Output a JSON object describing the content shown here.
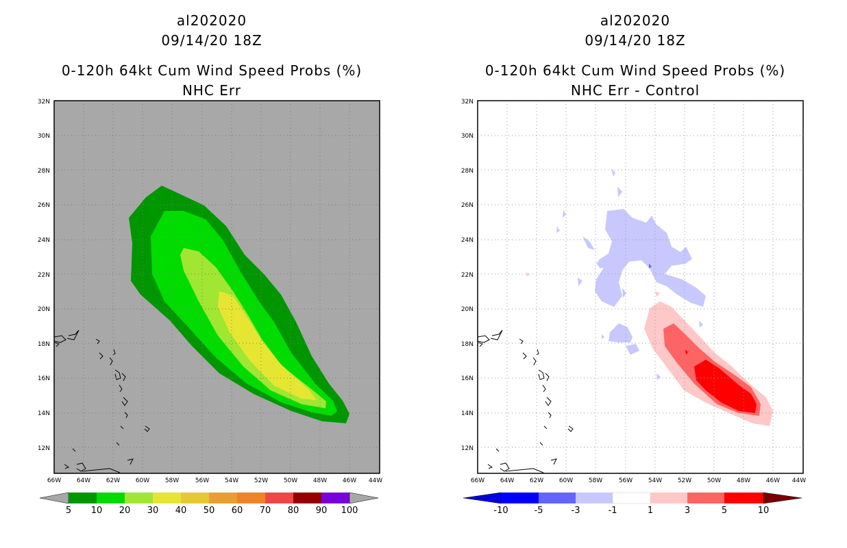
{
  "panels": [
    {
      "storm_id": "al202020",
      "datetime": "09/14/20 18Z",
      "product": "0-120h 64kt Cum Wind Speed Probs (%)",
      "subtitle": "NHC Err",
      "lat_labels": [
        "32N",
        "30N",
        "28N",
        "26N",
        "24N",
        "22N",
        "20N",
        "18N",
        "16N",
        "14N",
        "12N"
      ],
      "lon_labels": [
        "66W",
        "64W",
        "62W",
        "60W",
        "58W",
        "56W",
        "54W",
        "52W",
        "50W",
        "48W",
        "46W",
        "44W"
      ],
      "background_color": "#a8a8a8",
      "colorbar": {
        "labels": [
          "5",
          "10",
          "20",
          "30",
          "40",
          "50",
          "60",
          "70",
          "80",
          "90",
          "100"
        ],
        "colors": [
          "#009600",
          "#00dc00",
          "#a0e632",
          "#e6e632",
          "#e6c832",
          "#e6a032",
          "#f08228",
          "#f04646",
          "#960000",
          "#7800dc"
        ]
      }
    },
    {
      "storm_id": "al202020",
      "datetime": "09/14/20 18Z",
      "product": "0-120h 64kt Cum Wind Speed Probs (%)",
      "subtitle": "NHC Err - Control",
      "lat_labels": [
        "32N",
        "30N",
        "28N",
        "26N",
        "24N",
        "22N",
        "20N",
        "18N",
        "16N",
        "14N",
        "12N"
      ],
      "lon_labels": [
        "66W",
        "64W",
        "62W",
        "60W",
        "58W",
        "56W",
        "54W",
        "52W",
        "50W",
        "48W",
        "46W",
        "44W"
      ],
      "background_color": "#ffffff",
      "colorbar": {
        "labels": [
          "-10",
          "-5",
          "-3",
          "-1",
          "1",
          "3",
          "5",
          "10"
        ],
        "colors": [
          "#0000dc",
          "#0000ff",
          "#6464ff",
          "#c8c8ff",
          "#ffffff",
          "#ffc8c8",
          "#ff6464",
          "#ff0000",
          "#780000"
        ]
      }
    }
  ]
}
